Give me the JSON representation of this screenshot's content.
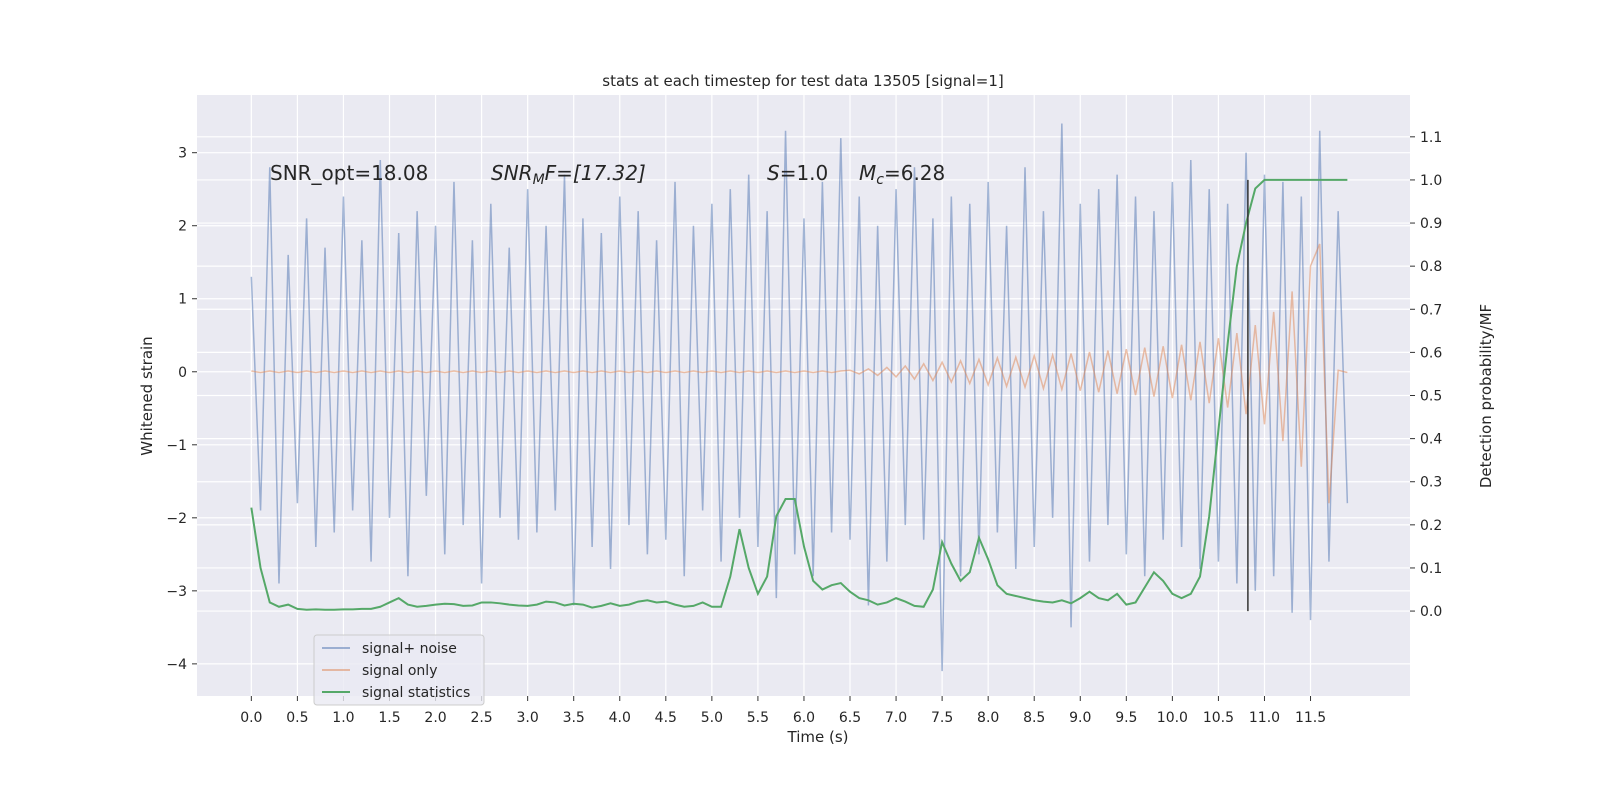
{
  "chart_data": {
    "type": "line",
    "title": "stats at each timestep for test data 13505 [signal=1]",
    "xlabel": "Time (s)",
    "ylabel": "Whitened strain",
    "y2label": "Detection probability/MF",
    "annotations": [
      [
        {
          "text": "SNR_opt=18.08",
          "style": "normal"
        }
      ],
      [
        {
          "text": "SNR",
          "style": "italic"
        },
        {
          "text": "M",
          "style": "italic-sub"
        },
        {
          "text": "F=[17.32]",
          "style": "italic"
        }
      ],
      [
        {
          "text": "S",
          "style": "italic"
        },
        {
          "text": "=1.0",
          "style": "normal"
        }
      ],
      [
        {
          "text": "M",
          "style": "italic"
        },
        {
          "text": "c",
          "style": "italic-sub"
        },
        {
          "text": "=6.28",
          "style": "normal"
        }
      ]
    ],
    "x": [
      0.0,
      0.1,
      0.2,
      0.3,
      0.4,
      0.5,
      0.6,
      0.7,
      0.8,
      0.9,
      1.0,
      1.1,
      1.2,
      1.3,
      1.4,
      1.5,
      1.6,
      1.7,
      1.8,
      1.9,
      2.0,
      2.1,
      2.2,
      2.3,
      2.4,
      2.5,
      2.6,
      2.7,
      2.8,
      2.9,
      3.0,
      3.1,
      3.2,
      3.3,
      3.4,
      3.5,
      3.6,
      3.7,
      3.8,
      3.9,
      4.0,
      4.1,
      4.2,
      4.3,
      4.4,
      4.5,
      4.6,
      4.7,
      4.8,
      4.9,
      5.0,
      5.1,
      5.2,
      5.3,
      5.4,
      5.5,
      5.6,
      5.7,
      5.8,
      5.9,
      6.0,
      6.1,
      6.2,
      6.3,
      6.4,
      6.5,
      6.6,
      6.7,
      6.8,
      6.9,
      7.0,
      7.1,
      7.2,
      7.3,
      7.4,
      7.5,
      7.6,
      7.7,
      7.8,
      7.9,
      8.0,
      8.1,
      8.2,
      8.3,
      8.4,
      8.5,
      8.6,
      8.7,
      8.8,
      8.9,
      9.0,
      9.1,
      9.2,
      9.3,
      9.4,
      9.5,
      9.6,
      9.7,
      9.8,
      9.9,
      10.0,
      10.1,
      10.2,
      10.3,
      10.4,
      10.5,
      10.6,
      10.7,
      10.8,
      10.9,
      11.0,
      11.1,
      11.2,
      11.3,
      11.4,
      11.5,
      11.6,
      11.7,
      11.8,
      11.9
    ],
    "series": [
      {
        "name": "signal+ noise",
        "color": "#4c72b0",
        "opacity": 0.5,
        "values": [
          1.3,
          -1.9,
          2.8,
          -2.9,
          1.6,
          -1.8,
          2.1,
          -2.4,
          1.7,
          -2.2,
          2.4,
          -1.9,
          1.8,
          -2.6,
          2.9,
          -2.0,
          1.9,
          -2.8,
          2.2,
          -1.7,
          2.0,
          -2.5,
          2.6,
          -2.1,
          1.8,
          -2.9,
          2.3,
          -2.0,
          1.7,
          -2.3,
          2.5,
          -2.2,
          2.0,
          -1.9,
          2.7,
          -3.2,
          2.1,
          -2.4,
          1.9,
          -2.7,
          2.4,
          -2.1,
          2.2,
          -2.5,
          1.8,
          -2.3,
          2.6,
          -2.8,
          2.0,
          -1.9,
          2.3,
          -2.6,
          2.5,
          -2.0,
          2.7,
          -2.4,
          2.2,
          -3.1,
          3.3,
          -2.5,
          2.1,
          -2.8,
          2.6,
          -2.2,
          3.2,
          -2.3,
          2.4,
          -3.2,
          2.0,
          -2.6,
          2.5,
          -2.1,
          2.8,
          -2.3,
          2.1,
          -4.1,
          2.4,
          -2.8,
          2.3,
          -2.5,
          2.6,
          -2.2,
          2.0,
          -2.7,
          2.8,
          -2.4,
          2.2,
          -2.0,
          3.4,
          -3.5,
          2.3,
          -2.6,
          2.5,
          -2.1,
          2.7,
          -2.5,
          2.4,
          -2.8,
          2.2,
          -2.3,
          2.6,
          -2.4,
          2.9,
          -2.7,
          2.5,
          -2.6,
          2.3,
          -2.9,
          3.0,
          -3.0,
          2.7,
          -2.8,
          2.6,
          -3.3,
          2.4,
          -3.4,
          3.3,
          -2.6,
          2.2,
          -1.8
        ]
      },
      {
        "name": "signal only",
        "color": "#dd8452",
        "opacity": 0.5,
        "values": [
          0.01,
          -0.01,
          0.01,
          -0.01,
          0.01,
          -0.01,
          0.01,
          -0.01,
          0.01,
          -0.01,
          0.01,
          -0.01,
          0.01,
          -0.01,
          0.01,
          -0.01,
          0.01,
          -0.01,
          0.01,
          -0.01,
          0.01,
          -0.01,
          0.01,
          -0.01,
          0.01,
          -0.01,
          0.01,
          -0.01,
          0.01,
          -0.01,
          0.01,
          -0.01,
          0.01,
          -0.01,
          0.01,
          -0.01,
          0.01,
          -0.01,
          0.01,
          -0.01,
          0.01,
          -0.01,
          0.01,
          -0.01,
          0.01,
          -0.01,
          0.01,
          -0.01,
          0.01,
          -0.01,
          0.01,
          -0.01,
          0.01,
          -0.01,
          0.01,
          -0.01,
          0.01,
          -0.01,
          0.01,
          -0.01,
          0.01,
          -0.01,
          0.01,
          -0.01,
          0.01,
          0.02,
          -0.03,
          0.04,
          -0.05,
          0.06,
          -0.07,
          0.08,
          -0.1,
          0.11,
          -0.12,
          0.13,
          -0.14,
          0.15,
          -0.16,
          0.17,
          -0.18,
          0.19,
          -0.2,
          0.2,
          -0.21,
          0.22,
          -0.23,
          0.23,
          -0.24,
          0.25,
          -0.26,
          0.27,
          -0.28,
          0.29,
          -0.3,
          0.31,
          -0.32,
          0.33,
          -0.34,
          0.35,
          -0.36,
          0.37,
          -0.39,
          0.41,
          -0.43,
          0.46,
          -0.49,
          0.53,
          -0.58,
          0.64,
          -0.72,
          0.82,
          -0.95,
          1.1,
          -1.3,
          1.45,
          1.75,
          -1.8,
          0.02,
          -0.01
        ]
      },
      {
        "name": "signal statistics",
        "color": "#55a868",
        "opacity": 1,
        "axis": "y2",
        "values": [
          0.24,
          0.1,
          0.02,
          0.01,
          0.015,
          0.005,
          0.003,
          0.004,
          0.003,
          0.003,
          0.004,
          0.004,
          0.005,
          0.005,
          0.01,
          0.02,
          0.03,
          0.015,
          0.01,
          0.012,
          0.015,
          0.017,
          0.016,
          0.012,
          0.013,
          0.02,
          0.02,
          0.018,
          0.015,
          0.013,
          0.012,
          0.015,
          0.022,
          0.02,
          0.013,
          0.017,
          0.015,
          0.008,
          0.012,
          0.018,
          0.012,
          0.015,
          0.022,
          0.025,
          0.02,
          0.022,
          0.015,
          0.01,
          0.012,
          0.02,
          0.01,
          0.01,
          0.08,
          0.19,
          0.1,
          0.04,
          0.08,
          0.22,
          0.26,
          0.26,
          0.15,
          0.07,
          0.05,
          0.06,
          0.065,
          0.045,
          0.03,
          0.025,
          0.015,
          0.02,
          0.03,
          0.022,
          0.012,
          0.01,
          0.05,
          0.16,
          0.11,
          0.07,
          0.09,
          0.17,
          0.12,
          0.06,
          0.04,
          0.035,
          0.03,
          0.025,
          0.022,
          0.02,
          0.025,
          0.018,
          0.03,
          0.045,
          0.03,
          0.025,
          0.04,
          0.015,
          0.02,
          0.055,
          0.09,
          0.07,
          0.04,
          0.03,
          0.04,
          0.08,
          0.22,
          0.42,
          0.62,
          0.8,
          0.9,
          0.98,
          1.0,
          1.0,
          1.0,
          1.0,
          1.0,
          1.0,
          1.0,
          1.0,
          1.0,
          1.0
        ]
      }
    ],
    "vline": {
      "x": 10.82,
      "ymin": 0,
      "ymax": 1.0,
      "axis": "y2",
      "color": "#333333"
    },
    "xlim": [
      -0.59,
      12.58
    ],
    "ylim": [
      -4.44,
      3.79
    ],
    "y2lim": [
      -0.197,
      1.197
    ],
    "xticks": [
      {
        "value": 0,
        "label": "0.0"
      },
      0.5,
      {
        "value": 1,
        "label": "1.0"
      },
      1.5,
      {
        "value": 2,
        "label": "2.0"
      },
      2.5,
      {
        "value": 3,
        "label": "3.0"
      },
      3.5,
      {
        "value": 4,
        "label": "4.0"
      },
      4.5,
      {
        "value": 5,
        "label": "5.0"
      },
      5.5,
      {
        "value": 6,
        "label": "6.0"
      },
      6.5,
      {
        "value": 7,
        "label": "7.0"
      },
      7.5,
      {
        "value": 8,
        "label": "8.0"
      },
      8.5,
      {
        "value": 9,
        "label": "9.0"
      },
      9.5,
      {
        "value": 10,
        "label": "10.0"
      },
      10.5,
      {
        "value": 11,
        "label": "11.0"
      },
      11.5
    ],
    "yticks": [
      {
        "value": -4,
        "label": "−4"
      },
      {
        "value": -3,
        "label": "−3"
      },
      {
        "value": -2,
        "label": "−2"
      },
      {
        "value": -1,
        "label": "−1"
      },
      0,
      1,
      2,
      3
    ],
    "y2ticks": [
      {
        "value": 0,
        "label": "0.0"
      },
      0.1,
      0.2,
      0.3,
      0.4,
      0.5,
      0.6,
      0.7,
      0.8,
      0.9,
      {
        "value": 1,
        "label": "1.0"
      },
      1.1
    ],
    "grid": true,
    "legend": "lower left"
  }
}
